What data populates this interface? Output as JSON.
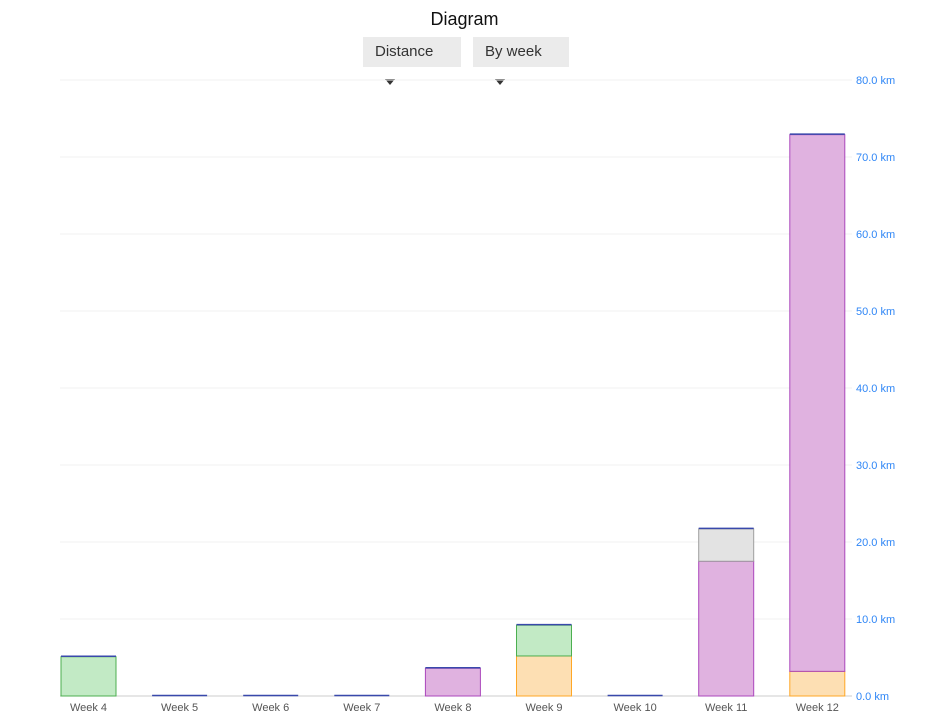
{
  "title": "Diagram",
  "controls": {
    "metric": "Distance",
    "period": "By week"
  },
  "chart_data": {
    "type": "bar",
    "stacked": true,
    "categories": [
      "Week 4",
      "Week 5",
      "Week 6",
      "Week 7",
      "Week 8",
      "Week 9",
      "Week 10",
      "Week 11",
      "Week 12"
    ],
    "series": [
      {
        "color": "#ffa726",
        "fill": "#fddfb3",
        "values": [
          0,
          0,
          0,
          0,
          0,
          5.2,
          0,
          0,
          3.2
        ]
      },
      {
        "color": "#ab47bc",
        "fill": "#e0b2e0",
        "values": [
          0,
          0,
          0,
          0,
          3.6,
          0,
          0,
          17.5,
          69.7
        ]
      },
      {
        "color": "#4caf50",
        "fill": "#c2eac5",
        "values": [
          5.1,
          0,
          0,
          0,
          0,
          4.0,
          0,
          0,
          0
        ]
      },
      {
        "color": "#3949ab",
        "fill": "#3949ab",
        "values": [
          0,
          0,
          0,
          0,
          0,
          0,
          0,
          0,
          0
        ]
      },
      {
        "color": "#9e9e9e",
        "fill": "#e3e3e3",
        "values": [
          0,
          0,
          0,
          0,
          0,
          0,
          0,
          4.2,
          0
        ]
      }
    ],
    "ylim": [
      0,
      80
    ],
    "yticks": [
      "0.0 km",
      "10.0 km",
      "20.0 km",
      "30.0 km",
      "40.0 km",
      "50.0 km",
      "60.0 km",
      "70.0 km",
      "80.0 km"
    ],
    "yaxis_position": "right",
    "grid": true,
    "legend": "none"
  }
}
